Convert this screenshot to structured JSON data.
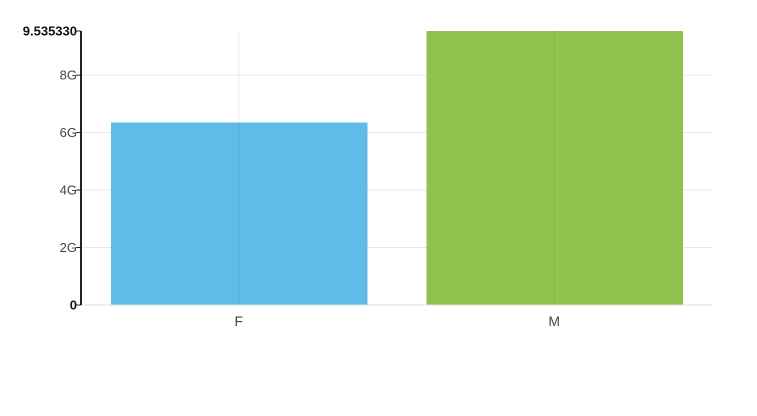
{
  "chart_data": {
    "type": "bar",
    "categories": [
      "F",
      "M"
    ],
    "values": [
      6.35,
      9.53533
    ],
    "colors": [
      "#5fbce6",
      "#8fc24e"
    ],
    "ylim": [
      0,
      9.53533
    ],
    "y_ticks": [
      {
        "value": 0,
        "label": "0",
        "bold": true
      },
      {
        "value": 2,
        "label": "2G",
        "bold": false
      },
      {
        "value": 4,
        "label": "4G",
        "bold": false
      },
      {
        "value": 6,
        "label": "6G",
        "bold": false
      },
      {
        "value": 8,
        "label": "8G",
        "bold": false
      },
      {
        "value": 9.53533,
        "label": "9.535330",
        "bold": true
      }
    ],
    "title": "",
    "xlabel": "",
    "ylabel": "",
    "grid": true,
    "legend": "none"
  }
}
